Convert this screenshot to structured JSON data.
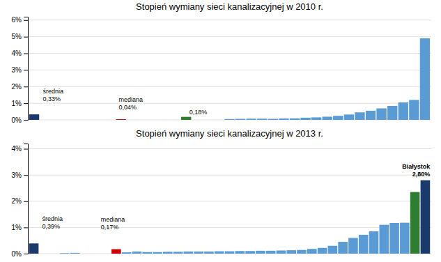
{
  "chart_data": [
    {
      "type": "bar",
      "title": "Stopień wymiany sieci kanalizacyjnej w 2010 r.",
      "values": [
        0.0033,
        0,
        0,
        0,
        0,
        0,
        0,
        0,
        0.0004,
        0,
        0,
        0,
        0,
        0,
        0.0018,
        0,
        0,
        0,
        0.0005,
        0.0006,
        0.0007,
        0.0007,
        0.0006,
        0.0008,
        0.0009,
        0.0013,
        0.0015,
        0.0019,
        0.0024,
        0.0032,
        0.0045,
        0.0055,
        0.0069,
        0.0084,
        0.0105,
        0.012,
        0.049
      ],
      "colors": [
        "#1a3a6b",
        "#5b9bd5",
        "#5b9bd5",
        "#5b9bd5",
        "#5b9bd5",
        "#5b9bd5",
        "#5b9bd5",
        "#5b9bd5",
        "#cc0000",
        "#5b9bd5",
        "#5b9bd5",
        "#5b9bd5",
        "#5b9bd5",
        "#5b9bd5",
        "#2e7d32",
        "#5b9bd5",
        "#5b9bd5",
        "#5b9bd5",
        "#5b9bd5",
        "#5b9bd5",
        "#5b9bd5",
        "#5b9bd5",
        "#5b9bd5",
        "#5b9bd5",
        "#5b9bd5",
        "#5b9bd5",
        "#5b9bd5",
        "#5b9bd5",
        "#5b9bd5",
        "#5b9bd5",
        "#5b9bd5",
        "#5b9bd5",
        "#5b9bd5",
        "#5b9bd5",
        "#5b9bd5",
        "#5b9bd5",
        "#5b9bd5"
      ],
      "ylim": [
        0,
        0.062
      ],
      "yticks": [
        {
          "value": 0,
          "label": "0%"
        },
        {
          "value": 0.01,
          "label": "1%"
        },
        {
          "value": 0.02,
          "label": "2%"
        },
        {
          "value": 0.03,
          "label": "3%"
        },
        {
          "value": 0.04,
          "label": "4%"
        },
        {
          "value": 0.05,
          "label": "5%"
        },
        {
          "value": 0.06,
          "label": "6%"
        }
      ],
      "grid": true,
      "tick_labels": "y",
      "annotations": [
        "średnia\n0,33%",
        "mediana\n0,04%",
        "0,18%"
      ]
    },
    {
      "type": "bar",
      "title": "Stopień wymiany sieci kanalizacyjnej w 2013 r.",
      "values": [
        0.0039,
        0,
        0,
        0.0002,
        0.0003,
        0,
        0,
        0,
        0.0017,
        0.0005,
        0.0008,
        0.0006,
        0.0006,
        0.0007,
        0.0007,
        0.0008,
        0.0008,
        0.0008,
        0.0009,
        0.0009,
        0.001,
        0.001,
        0.0011,
        0.0011,
        0.0012,
        0.0013,
        0.0014,
        0.0018,
        0.0022,
        0.003,
        0.0045,
        0.006,
        0.0072,
        0.0085,
        0.011,
        0.0117,
        0.0118,
        0.0235,
        0.028
      ],
      "colors": [
        "#1a3a6b",
        "#5b9bd5",
        "#5b9bd5",
        "#5b9bd5",
        "#5b9bd5",
        "#5b9bd5",
        "#5b9bd5",
        "#5b9bd5",
        "#cc0000",
        "#5b9bd5",
        "#5b9bd5",
        "#5b9bd5",
        "#5b9bd5",
        "#5b9bd5",
        "#5b9bd5",
        "#5b9bd5",
        "#5b9bd5",
        "#5b9bd5",
        "#5b9bd5",
        "#5b9bd5",
        "#5b9bd5",
        "#5b9bd5",
        "#5b9bd5",
        "#5b9bd5",
        "#5b9bd5",
        "#5b9bd5",
        "#5b9bd5",
        "#5b9bd5",
        "#5b9bd5",
        "#5b9bd5",
        "#5b9bd5",
        "#5b9bd5",
        "#5b9bd5",
        "#5b9bd5",
        "#5b9bd5",
        "#5b9bd5",
        "#5b9bd5",
        "#2e7d32",
        "#1a3a6b"
      ],
      "ylim": [
        0,
        0.042
      ],
      "yticks": [
        {
          "value": 0,
          "label": "0%"
        },
        {
          "value": 0.01,
          "label": "1%"
        },
        {
          "value": 0.02,
          "label": "2%"
        },
        {
          "value": 0.03,
          "label": "3%"
        },
        {
          "value": 0.04,
          "label": "4%"
        }
      ],
      "grid": true,
      "tick_labels": "y",
      "annotations": [
        "średnia\n0,39%",
        "mediana\n0,17%",
        "Białystok\n2,80%"
      ]
    }
  ]
}
